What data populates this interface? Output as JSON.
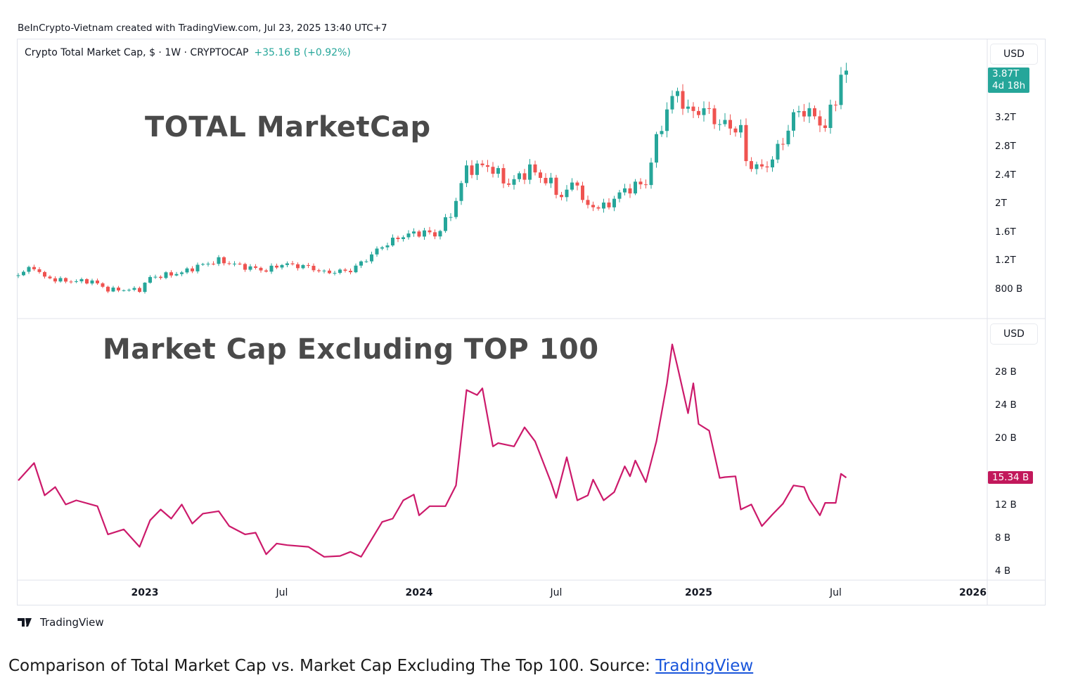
{
  "credit": "BeInCrypto-Vietnam created with TradingView.com, Jul 23, 2025 13:40 UTC+7",
  "legend": {
    "symbol": "Crypto Total Market Cap, $ · 1W · CRYPTOCAP",
    "change": "+35.16 B (+0.92%)"
  },
  "branding": "TradingView",
  "caption": {
    "text": "Comparison of Total Market Cap vs. Market Cap Excluding The Top 100. Source: ",
    "link": "TradingView"
  },
  "colors": {
    "up": "#26a69a",
    "down": "#ef5350",
    "line": "#cc1a6b",
    "line_tag": "#c2185b"
  },
  "chart_data": [
    {
      "type": "candlestick",
      "title": "TOTAL MarketCap",
      "currency": "USD",
      "x_unit": "weeks since 2023-01-01",
      "ylim_T": [
        0.8,
        3.9
      ],
      "y_ticks": [
        {
          "v": 3.2,
          "label": "3.2T"
        },
        {
          "v": 2.8,
          "label": "2.8T"
        },
        {
          "v": 2.4,
          "label": "2.4T"
        },
        {
          "v": 2.0,
          "label": "2T"
        },
        {
          "v": 1.6,
          "label": "1.6T"
        },
        {
          "v": 1.2,
          "label": "1.2T"
        },
        {
          "v": 0.8,
          "label": "800 B"
        }
      ],
      "last_price": {
        "label": "3.87T",
        "countdown": "4d 18h"
      },
      "weekly_close_T": [
        [
          -24,
          1.02
        ],
        [
          -21,
          1.12
        ],
        [
          -19,
          0.97
        ],
        [
          -15,
          0.92
        ],
        [
          -10,
          0.92
        ],
        [
          -7,
          0.8
        ],
        [
          -1,
          0.8
        ],
        [
          1,
          0.97
        ],
        [
          7,
          1.04
        ],
        [
          10,
          1.13
        ],
        [
          14,
          1.21
        ],
        [
          19,
          1.12
        ],
        [
          23,
          1.07
        ],
        [
          26,
          1.16
        ],
        [
          31,
          1.12
        ],
        [
          34,
          1.04
        ],
        [
          39,
          1.07
        ],
        [
          42,
          1.23
        ],
        [
          45,
          1.41
        ],
        [
          49,
          1.56
        ],
        [
          53,
          1.61
        ],
        [
          55,
          1.56
        ],
        [
          58,
          1.85
        ],
        [
          61,
          2.49
        ],
        [
          65,
          2.54
        ],
        [
          69,
          2.28
        ],
        [
          73,
          2.49
        ],
        [
          77,
          2.28
        ],
        [
          79,
          2.1
        ],
        [
          82,
          2.35
        ],
        [
          83,
          2.0
        ],
        [
          87,
          1.95
        ],
        [
          91,
          2.2
        ],
        [
          95,
          2.3
        ],
        [
          97,
          2.89
        ],
        [
          99,
          3.33
        ],
        [
          101,
          3.58
        ],
        [
          103,
          3.28
        ],
        [
          106,
          3.33
        ],
        [
          109,
          3.13
        ],
        [
          113,
          3.04
        ],
        [
          114,
          2.59
        ],
        [
          117,
          2.49
        ],
        [
          119,
          2.64
        ],
        [
          121,
          2.89
        ],
        [
          123,
          3.23
        ],
        [
          125,
          3.33
        ],
        [
          129,
          3.09
        ],
        [
          131,
          3.48
        ],
        [
          132,
          3.82
        ],
        [
          133,
          3.87
        ]
      ]
    },
    {
      "type": "line",
      "title": "Market Cap Excluding TOP 100",
      "currency": "USD",
      "x_unit": "weeks since 2023-01-01",
      "ylim_B": [
        4,
        32
      ],
      "y_ticks": [
        {
          "v": 28,
          "label": "28 B"
        },
        {
          "v": 24,
          "label": "24 B"
        },
        {
          "v": 20,
          "label": "20 B"
        },
        {
          "v": 12,
          "label": "12 B"
        },
        {
          "v": 8,
          "label": "8 B"
        },
        {
          "v": 4,
          "label": "4 B"
        }
      ],
      "last_value": "15.34 B",
      "values_B": [
        [
          -24,
          15.0
        ],
        [
          -21,
          17.1
        ],
        [
          -19,
          13.2
        ],
        [
          -17,
          14.2
        ],
        [
          -15,
          12.1
        ],
        [
          -13,
          12.6
        ],
        [
          -9,
          11.9
        ],
        [
          -7,
          8.5
        ],
        [
          -4,
          9.1
        ],
        [
          -1,
          7.0
        ],
        [
          1,
          10.2
        ],
        [
          3,
          11.5
        ],
        [
          5,
          10.4
        ],
        [
          7,
          12.1
        ],
        [
          9,
          9.8
        ],
        [
          11,
          11.0
        ],
        [
          14,
          11.3
        ],
        [
          16,
          9.5
        ],
        [
          19,
          8.5
        ],
        [
          21,
          8.7
        ],
        [
          23,
          6.1
        ],
        [
          25,
          7.4
        ],
        [
          27,
          7.2
        ],
        [
          31,
          7.0
        ],
        [
          34,
          5.8
        ],
        [
          37,
          5.9
        ],
        [
          39,
          6.4
        ],
        [
          41,
          5.8
        ],
        [
          45,
          10.0
        ],
        [
          47,
          10.4
        ],
        [
          49,
          12.6
        ],
        [
          51,
          13.3
        ],
        [
          52,
          10.8
        ],
        [
          54,
          11.9
        ],
        [
          57,
          11.9
        ],
        [
          59,
          14.4
        ],
        [
          61,
          25.9
        ],
        [
          63,
          25.3
        ],
        [
          64,
          26.1
        ],
        [
          66,
          19.1
        ],
        [
          67,
          19.5
        ],
        [
          70,
          19.1
        ],
        [
          72,
          21.4
        ],
        [
          74,
          19.7
        ],
        [
          77,
          14.8
        ],
        [
          78,
          12.9
        ],
        [
          80,
          17.8
        ],
        [
          82,
          12.6
        ],
        [
          84,
          13.2
        ],
        [
          85,
          15.1
        ],
        [
          87,
          12.6
        ],
        [
          89,
          13.6
        ],
        [
          91,
          16.7
        ],
        [
          92,
          15.5
        ],
        [
          93,
          17.4
        ],
        [
          95,
          14.8
        ],
        [
          97,
          19.7
        ],
        [
          99,
          26.7
        ],
        [
          100,
          31.4
        ],
        [
          101,
          28.7
        ],
        [
          103,
          23.1
        ],
        [
          104,
          26.7
        ],
        [
          105,
          21.8
        ],
        [
          107,
          21.0
        ],
        [
          109,
          15.3
        ],
        [
          110,
          15.4
        ],
        [
          112,
          15.5
        ],
        [
          113,
          11.5
        ],
        [
          115,
          12.1
        ],
        [
          117,
          9.5
        ],
        [
          119,
          10.9
        ],
        [
          121,
          12.2
        ],
        [
          123,
          14.4
        ],
        [
          125,
          14.2
        ],
        [
          126,
          12.7
        ],
        [
          128,
          10.8
        ],
        [
          129,
          12.3
        ],
        [
          131,
          12.3
        ],
        [
          132,
          15.8
        ],
        [
          133,
          15.34
        ]
      ]
    }
  ],
  "x_ticks": [
    {
      "w": 0,
      "label": "2023",
      "bold": true
    },
    {
      "w": 26,
      "label": "Jul",
      "bold": false
    },
    {
      "w": 52,
      "label": "2024",
      "bold": true
    },
    {
      "w": 78,
      "label": "Jul",
      "bold": false
    },
    {
      "w": 105,
      "label": "2025",
      "bold": true
    },
    {
      "w": 131,
      "label": "Jul",
      "bold": false
    },
    {
      "w": 157,
      "label": "2026",
      "bold": true
    }
  ],
  "axis": {
    "usd_label": "USD"
  }
}
